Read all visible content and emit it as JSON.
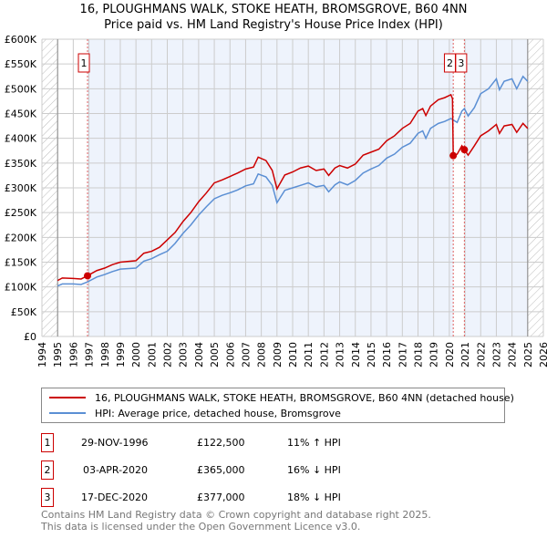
{
  "title": "16, PLOUGHMANS WALK, STOKE HEATH, BROMSGROVE, B60 4NN",
  "subtitle": "Price paid vs. HM Land Registry's House Price Index (HPI)",
  "chart_data": {
    "type": "line",
    "ylim": [
      0,
      600000
    ],
    "xlim": [
      1994,
      2026
    ],
    "yticks": [
      {
        "v": 0,
        "l": "£0"
      },
      {
        "v": 50000,
        "l": "£50K"
      },
      {
        "v": 100000,
        "l": "£100K"
      },
      {
        "v": 150000,
        "l": "£150K"
      },
      {
        "v": 200000,
        "l": "£200K"
      },
      {
        "v": 250000,
        "l": "£250K"
      },
      {
        "v": 300000,
        "l": "£300K"
      },
      {
        "v": 350000,
        "l": "£350K"
      },
      {
        "v": 400000,
        "l": "£400K"
      },
      {
        "v": 450000,
        "l": "£450K"
      },
      {
        "v": 500000,
        "l": "£500K"
      },
      {
        "v": 550000,
        "l": "£550K"
      },
      {
        "v": 600000,
        "l": "£600K"
      }
    ],
    "xticks": [
      "1994",
      "1995",
      "1996",
      "1997",
      "1998",
      "1999",
      "2000",
      "2001",
      "2002",
      "2003",
      "2004",
      "2005",
      "2006",
      "2007",
      "2008",
      "2009",
      "2010",
      "2011",
      "2012",
      "2013",
      "2014",
      "2015",
      "2016",
      "2017",
      "2018",
      "2019",
      "2020",
      "2021",
      "2022",
      "2023",
      "2024",
      "2025",
      "2026"
    ],
    "grid": true,
    "data_range": [
      1995,
      2025
    ],
    "series": [
      {
        "name": "16, PLOUGHMANS WALK, STOKE HEATH, BROMSGROVE, B60 4NN (detached house)",
        "color": "#cc0000",
        "x": [
          1995,
          1995.3,
          1996,
          1996.5,
          1996.9,
          1997.5,
          1998,
          1998.5,
          1999,
          2000,
          2000.5,
          2001,
          2001.5,
          2002,
          2002.5,
          2003,
          2003.5,
          2004,
          2004.5,
          2005,
          2005.5,
          2006,
          2006.5,
          2007,
          2007.5,
          2007.8,
          2008.3,
          2008.7,
          2009,
          2009.5,
          2010,
          2010.5,
          2011,
          2011.5,
          2012,
          2012.3,
          2012.7,
          2013,
          2013.5,
          2014,
          2014.5,
          2015,
          2015.5,
          2016,
          2016.5,
          2017,
          2017.5,
          2018,
          2018.3,
          2018.5,
          2018.8,
          2019.3,
          2019.7,
          2020.1,
          2020.2,
          2020.25,
          2020.5,
          2020.8,
          2020.96,
          2021.2,
          2021.6,
          2022,
          2022.5,
          2023,
          2023.2,
          2023.5,
          2024,
          2024.3,
          2024.7,
          2025
        ],
        "y": [
          113000,
          118000,
          117000,
          116000,
          122500,
          133000,
          138000,
          145000,
          150000,
          153000,
          168000,
          172000,
          180000,
          195000,
          210000,
          232000,
          250000,
          272000,
          290000,
          310000,
          316000,
          323000,
          330000,
          338000,
          342000,
          362000,
          355000,
          335000,
          298000,
          326000,
          332000,
          340000,
          344000,
          335000,
          338000,
          325000,
          340000,
          345000,
          340000,
          348000,
          366000,
          372000,
          378000,
          395000,
          405000,
          420000,
          430000,
          455000,
          460000,
          446000,
          465000,
          478000,
          482000,
          488000,
          480000,
          365000,
          368000,
          385000,
          377000,
          366000,
          385000,
          405000,
          415000,
          428000,
          410000,
          425000,
          428000,
          412000,
          430000,
          420000
        ]
      },
      {
        "name": "HPI: Average price, detached house, Bromsgrove",
        "color": "#5b8fd4",
        "x": [
          1995,
          1995.3,
          1996,
          1996.5,
          1996.9,
          1997.5,
          1998,
          1998.5,
          1999,
          2000,
          2000.5,
          2001,
          2001.5,
          2002,
          2002.5,
          2003,
          2003.5,
          2004,
          2004.5,
          2005,
          2005.5,
          2006,
          2006.5,
          2007,
          2007.5,
          2007.8,
          2008.3,
          2008.7,
          2009,
          2009.5,
          2010,
          2010.5,
          2011,
          2011.5,
          2012,
          2012.3,
          2012.7,
          2013,
          2013.5,
          2014,
          2014.5,
          2015,
          2015.5,
          2016,
          2016.5,
          2017,
          2017.5,
          2018,
          2018.3,
          2018.5,
          2018.8,
          2019.3,
          2019.7,
          2020.1,
          2020.5,
          2020.8,
          2020.96,
          2021.2,
          2021.6,
          2022,
          2022.5,
          2023,
          2023.2,
          2023.5,
          2024,
          2024.3,
          2024.7,
          2025
        ],
        "y": [
          102000,
          106000,
          106000,
          105000,
          110000,
          120000,
          125000,
          131000,
          136000,
          138000,
          152000,
          157000,
          165000,
          172000,
          188000,
          208000,
          225000,
          245000,
          262000,
          278000,
          285000,
          290000,
          296000,
          304000,
          308000,
          328000,
          322000,
          305000,
          270000,
          295000,
          300000,
          305000,
          310000,
          302000,
          305000,
          292000,
          306000,
          312000,
          306000,
          315000,
          330000,
          338000,
          345000,
          360000,
          368000,
          382000,
          390000,
          410000,
          415000,
          400000,
          420000,
          430000,
          434000,
          440000,
          432000,
          455000,
          460000,
          445000,
          462000,
          490000,
          500000,
          520000,
          498000,
          515000,
          520000,
          500000,
          525000,
          515000
        ]
      }
    ],
    "sales": [
      {
        "n": "1",
        "date": "29-NOV-1996",
        "x": 1996.91,
        "price": 122500,
        "price_label": "£122,500",
        "rel": "11% ↑ HPI"
      },
      {
        "n": "2",
        "date": "03-APR-2020",
        "x": 2020.25,
        "price": 365000,
        "price_label": "£365,000",
        "rel": "16% ↓ HPI"
      },
      {
        "n": "3",
        "date": "17-DEC-2020",
        "x": 2020.96,
        "price": 377000,
        "price_label": "£377,000",
        "rel": "18% ↓ HPI"
      }
    ],
    "legend_position": "below"
  },
  "footer": {
    "line1": "Contains HM Land Registry data © Crown copyright and database right 2025.",
    "line2": "This data is licensed under the Open Government Licence v3.0."
  }
}
